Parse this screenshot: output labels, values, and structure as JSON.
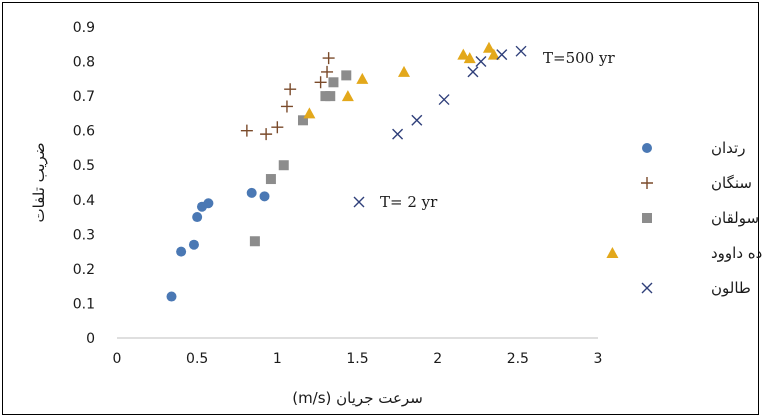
{
  "chart_data": {
    "type": "scatter",
    "xlabel": "سرعت جریان (m/s)",
    "ylabel": "ضریب تلفات",
    "xlim": [
      0,
      3
    ],
    "ylim": [
      0,
      0.9
    ],
    "xticks": [
      0,
      0.5,
      1,
      1.5,
      2,
      2.5,
      3
    ],
    "yticks": [
      0,
      0.1,
      0.2,
      0.3,
      0.4,
      0.5,
      0.6,
      0.7,
      0.8,
      0.9
    ],
    "xtick_labels": [
      "0",
      "0.5",
      "1",
      "1.5",
      "2",
      "2.5",
      "3"
    ],
    "ytick_labels": [
      "0",
      "0.1",
      "0.2",
      "0.3",
      "0.4",
      "0.5",
      "0.6",
      "0.7",
      "0.8",
      "0.9"
    ],
    "grid": false,
    "legend_position": "right",
    "series": [
      {
        "name": "رتدان",
        "marker": "circle",
        "color": "#4a78b4",
        "points": [
          [
            0.34,
            0.12
          ],
          [
            0.4,
            0.25
          ],
          [
            0.48,
            0.27
          ],
          [
            0.5,
            0.35
          ],
          [
            0.53,
            0.38
          ],
          [
            0.57,
            0.39
          ],
          [
            0.84,
            0.42
          ],
          [
            0.92,
            0.41
          ]
        ]
      },
      {
        "name": "سنگان",
        "marker": "plus",
        "color": "#7a4a2a",
        "points": [
          [
            0.81,
            0.6
          ],
          [
            0.93,
            0.59
          ],
          [
            1.0,
            0.61
          ],
          [
            1.06,
            0.67
          ],
          [
            1.08,
            0.72
          ],
          [
            1.27,
            0.74
          ],
          [
            1.31,
            0.77
          ],
          [
            1.32,
            0.81
          ]
        ]
      },
      {
        "name": "سولقان",
        "marker": "square",
        "color": "#8c8c8c",
        "points": [
          [
            0.86,
            0.28
          ],
          [
            0.96,
            0.46
          ],
          [
            1.04,
            0.5
          ],
          [
            1.16,
            0.63
          ],
          [
            1.3,
            0.7
          ],
          [
            1.33,
            0.7
          ],
          [
            1.35,
            0.74
          ],
          [
            1.43,
            0.76
          ]
        ]
      },
      {
        "name": "امامزاده داوود",
        "marker": "triangle",
        "color": "#e3a81b",
        "points": [
          [
            1.2,
            0.65
          ],
          [
            1.44,
            0.7
          ],
          [
            1.53,
            0.75
          ],
          [
            1.79,
            0.77
          ],
          [
            2.16,
            0.82
          ],
          [
            2.2,
            0.81
          ],
          [
            2.32,
            0.84
          ],
          [
            2.35,
            0.82
          ]
        ]
      },
      {
        "name": "طالون",
        "marker": "x",
        "color": "#2f3f7a",
        "points": [
          [
            1.75,
            0.59
          ],
          [
            1.87,
            0.63
          ],
          [
            2.04,
            0.69
          ],
          [
            2.22,
            0.77
          ],
          [
            2.27,
            0.8
          ],
          [
            2.4,
            0.82
          ],
          [
            2.52,
            0.83
          ]
        ]
      }
    ],
    "annotations": [
      {
        "text": "T=500 yr",
        "marker": "x"
      },
      {
        "text": "T= 2 yr",
        "marker": "x"
      }
    ]
  }
}
